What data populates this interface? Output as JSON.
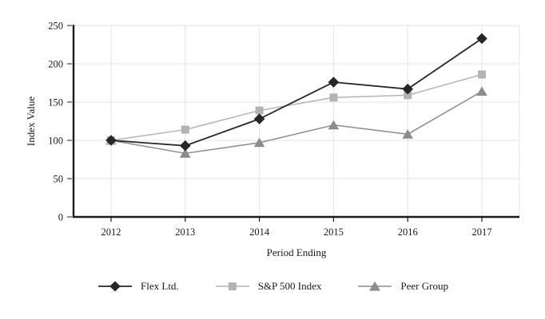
{
  "page": {
    "background": "#ffffff"
  },
  "chart_data": {
    "type": "line",
    "title": "",
    "xlabel": "Period Ending",
    "ylabel": "Index Value",
    "categories": [
      "2012",
      "2013",
      "2014",
      "2015",
      "2016",
      "2017"
    ],
    "series": [
      {
        "name": "Flex Ltd.",
        "marker": "diamond",
        "color": "#262626",
        "line_width": 1.8,
        "values": [
          100,
          93,
          128,
          176,
          167,
          233
        ]
      },
      {
        "name": "S&P 500 Index",
        "marker": "square",
        "color": "#b3b3b3",
        "line_width": 1.5,
        "values": [
          100,
          114,
          139,
          156,
          159,
          186
        ]
      },
      {
        "name": "Peer Group",
        "marker": "triangle",
        "color": "#8c8c8c",
        "line_width": 1.5,
        "values": [
          100,
          83,
          97,
          120,
          108,
          164
        ]
      }
    ],
    "ylim": [
      0,
      250
    ],
    "y_ticks": [
      0,
      50,
      100,
      150,
      200,
      250
    ],
    "grid": true,
    "legend_position": "bottom",
    "axis_color": "#1a1a1a",
    "grid_color": "#e3e3e3",
    "tick_color": "#444444",
    "text_color": "#1a1a1a"
  }
}
